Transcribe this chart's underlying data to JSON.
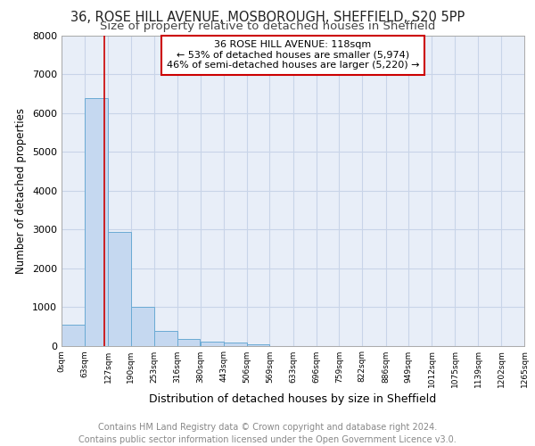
{
  "title1": "36, ROSE HILL AVENUE, MOSBOROUGH, SHEFFIELD, S20 5PP",
  "title2": "Size of property relative to detached houses in Sheffield",
  "xlabel": "Distribution of detached houses by size in Sheffield",
  "ylabel": "Number of detached properties",
  "bin_edges": [
    0,
    63,
    127,
    190,
    253,
    316,
    380,
    443,
    506,
    569,
    633,
    696,
    759,
    822,
    886,
    949,
    1012,
    1075,
    1139,
    1202,
    1265
  ],
  "bar_heights": [
    550,
    6400,
    2930,
    1000,
    380,
    170,
    100,
    80,
    30,
    0,
    0,
    0,
    0,
    0,
    0,
    0,
    0,
    0,
    0,
    0
  ],
  "bar_color": "#c5d8f0",
  "bar_edgecolor": "#6aaad4",
  "property_size": 118,
  "vline_color": "#cc0000",
  "annotation_line1": "36 ROSE HILL AVENUE: 118sqm",
  "annotation_line2": "← 53% of detached houses are smaller (5,974)",
  "annotation_line3": "46% of semi-detached houses are larger (5,220) →",
  "annotation_box_color": "#ffffff",
  "annotation_box_edgecolor": "#cc0000",
  "ylim": [
    0,
    8000
  ],
  "yticks": [
    0,
    1000,
    2000,
    3000,
    4000,
    5000,
    6000,
    7000,
    8000
  ],
  "grid_color": "#c8d4e8",
  "background_color": "#e8eef8",
  "footer_line1": "Contains HM Land Registry data © Crown copyright and database right 2024.",
  "footer_line2": "Contains public sector information licensed under the Open Government Licence v3.0.",
  "tick_labels": [
    "0sqm",
    "63sqm",
    "127sqm",
    "190sqm",
    "253sqm",
    "316sqm",
    "380sqm",
    "443sqm",
    "506sqm",
    "569sqm",
    "633sqm",
    "696sqm",
    "759sqm",
    "822sqm",
    "886sqm",
    "949sqm",
    "1012sqm",
    "1075sqm",
    "1139sqm",
    "1202sqm",
    "1265sqm"
  ],
  "title1_fontsize": 10.5,
  "title2_fontsize": 9.5,
  "annotation_fontsize": 8,
  "footer_fontsize": 7,
  "ylabel_fontsize": 8.5,
  "xlabel_fontsize": 9
}
